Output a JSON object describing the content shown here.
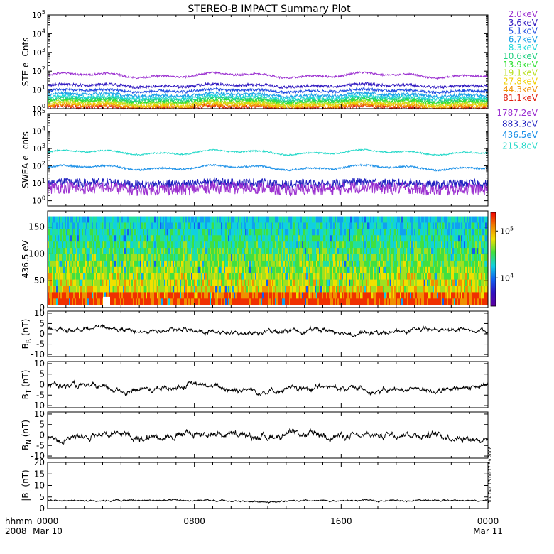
{
  "title": "STEREO-B IMPACT Summary Plot",
  "timestamp": "Tue Dec 13 00:17:59 2008",
  "footer": {
    "corner_top": "hhmm",
    "corner_bottom": "2008",
    "ticks": [
      {
        "time": "0000",
        "date": "Mar 10"
      },
      {
        "time": "0800",
        "date": ""
      },
      {
        "time": "1600",
        "date": ""
      },
      {
        "time": "0000",
        "date": "Mar 11"
      }
    ]
  },
  "chart_data": [
    {
      "type": "line",
      "panel": "ste",
      "ylabel": "STE e- Cnts",
      "yscale": "log",
      "ylim": [
        1,
        100000
      ],
      "y_tick_labels": [
        "10^0",
        "10^1",
        "10^2",
        "10^3",
        "10^4",
        "10^5"
      ],
      "x_hours": [
        0,
        24
      ],
      "series": [
        {
          "name": "2.0keV",
          "color": "#9b30d0",
          "level": 60,
          "noise": 0.05
        },
        {
          "name": "3.6keV",
          "color": "#3018c0",
          "level": 17,
          "noise": 0.07
        },
        {
          "name": "5.1keV",
          "color": "#1e4ae0",
          "level": 9,
          "noise": 0.07
        },
        {
          "name": "6.7keV",
          "color": "#1aa0e8",
          "level": 5.5,
          "noise": 0.08
        },
        {
          "name": "8.3keV",
          "color": "#20d8d8",
          "level": 4,
          "noise": 0.08
        },
        {
          "name": "10.6keV",
          "color": "#20d080",
          "level": 3.2,
          "noise": 0.08
        },
        {
          "name": "13.9keV",
          "color": "#2ee030",
          "level": 2.6,
          "noise": 0.08
        },
        {
          "name": "19.1keV",
          "color": "#b8e020",
          "level": 2.1,
          "noise": 0.08
        },
        {
          "name": "27.8keV",
          "color": "#f0d000",
          "level": 1.7,
          "noise": 0.09
        },
        {
          "name": "44.3keV",
          "color": "#f09000",
          "level": 1.4,
          "noise": 0.1
        },
        {
          "name": "81.1keV",
          "color": "#e02010",
          "level": 1.15,
          "noise": 0.1
        }
      ]
    },
    {
      "type": "line",
      "panel": "swea",
      "ylabel": "SWEA e- cnts",
      "yscale": "log",
      "ylim": [
        0.5,
        100000
      ],
      "y_tick_labels": [
        "10^0",
        "10^1",
        "10^2",
        "10^3",
        "10^4",
        "10^5"
      ],
      "x_hours": [
        0,
        24
      ],
      "series": [
        {
          "name": "1787.2eV",
          "color": "#9b30d0",
          "level": 5,
          "noise": 0.35
        },
        {
          "name": "883.3eV",
          "color": "#2020c0",
          "level": 10,
          "noise": 0.25
        },
        {
          "name": "436.5eV",
          "color": "#1a90e8",
          "level": 80,
          "noise": 0.05
        },
        {
          "name": "215.8eV",
          "color": "#20d8c8",
          "level": 600,
          "noise": 0.04
        }
      ]
    },
    {
      "type": "heatmap",
      "panel": "pad",
      "ylabel": "436.5 eV",
      "ylim": [
        0,
        180
      ],
      "y_ticks": [
        0,
        50,
        100,
        150
      ],
      "x_hours": [
        0,
        24
      ],
      "colorbar": {
        "scale": "log",
        "min": 2500,
        "max": 250000,
        "tick_values": [
          10000,
          100000
        ],
        "tick_labels": [
          "10^4",
          "10^5"
        ]
      }
    },
    {
      "type": "line",
      "panel": "br",
      "ylabel": "B_R (nT)",
      "ylim": [
        -11,
        11
      ],
      "y_ticks": [
        -10,
        -5,
        0,
        5,
        10
      ],
      "x_hours": [
        0,
        24
      ],
      "series": [
        {
          "color": "#000000",
          "base": [
            [
              0,
              2
            ],
            [
              3,
              3
            ],
            [
              5,
              1
            ],
            [
              8,
              2
            ],
            [
              10,
              0
            ],
            [
              12,
              1
            ],
            [
              15,
              2
            ],
            [
              17,
              0
            ],
            [
              19,
              1
            ],
            [
              21,
              2
            ],
            [
              24,
              2
            ]
          ],
          "noise": 1.2
        }
      ]
    },
    {
      "type": "line",
      "panel": "bt",
      "ylabel": "B_T (nT)",
      "ylim": [
        -11,
        11
      ],
      "y_ticks": [
        -10,
        -5,
        0,
        5,
        10
      ],
      "x_hours": [
        0,
        24
      ],
      "series": [
        {
          "color": "#000000",
          "base": [
            [
              0,
              0
            ],
            [
              2,
              -1
            ],
            [
              4,
              -3
            ],
            [
              6,
              -2
            ],
            [
              8,
              0
            ],
            [
              10,
              -2
            ],
            [
              12,
              -3
            ],
            [
              14,
              -2
            ],
            [
              16,
              -1
            ],
            [
              18,
              -3
            ],
            [
              20,
              -2
            ],
            [
              22,
              -3
            ],
            [
              24,
              0
            ]
          ],
          "noise": 1.5
        }
      ]
    },
    {
      "type": "line",
      "panel": "bn",
      "ylabel": "B_N (nT)",
      "ylim": [
        -11,
        11
      ],
      "y_ticks": [
        -10,
        -5,
        0,
        5,
        10
      ],
      "x_hours": [
        0,
        24
      ],
      "series": [
        {
          "color": "#000000",
          "base": [
            [
              0,
              -2
            ],
            [
              3,
              1
            ],
            [
              5,
              -1
            ],
            [
              7,
              0
            ],
            [
              9,
              1
            ],
            [
              11,
              -1
            ],
            [
              13,
              0
            ],
            [
              15,
              0
            ],
            [
              17,
              -1
            ],
            [
              19,
              1
            ],
            [
              21,
              0
            ],
            [
              24,
              -2
            ]
          ],
          "noise": 1.8
        }
      ]
    },
    {
      "type": "line",
      "panel": "bmag",
      "ylabel": "|B| (nT)",
      "ylim": [
        0,
        20
      ],
      "y_ticks": [
        0,
        5,
        10,
        15,
        20
      ],
      "x_hours": [
        0,
        24
      ],
      "series": [
        {
          "color": "#000000",
          "base": [
            [
              0,
              3.5
            ],
            [
              6,
              3.5
            ],
            [
              12,
              3
            ],
            [
              18,
              3.5
            ],
            [
              24,
              3.5
            ]
          ],
          "noise": 0.4
        }
      ]
    }
  ]
}
